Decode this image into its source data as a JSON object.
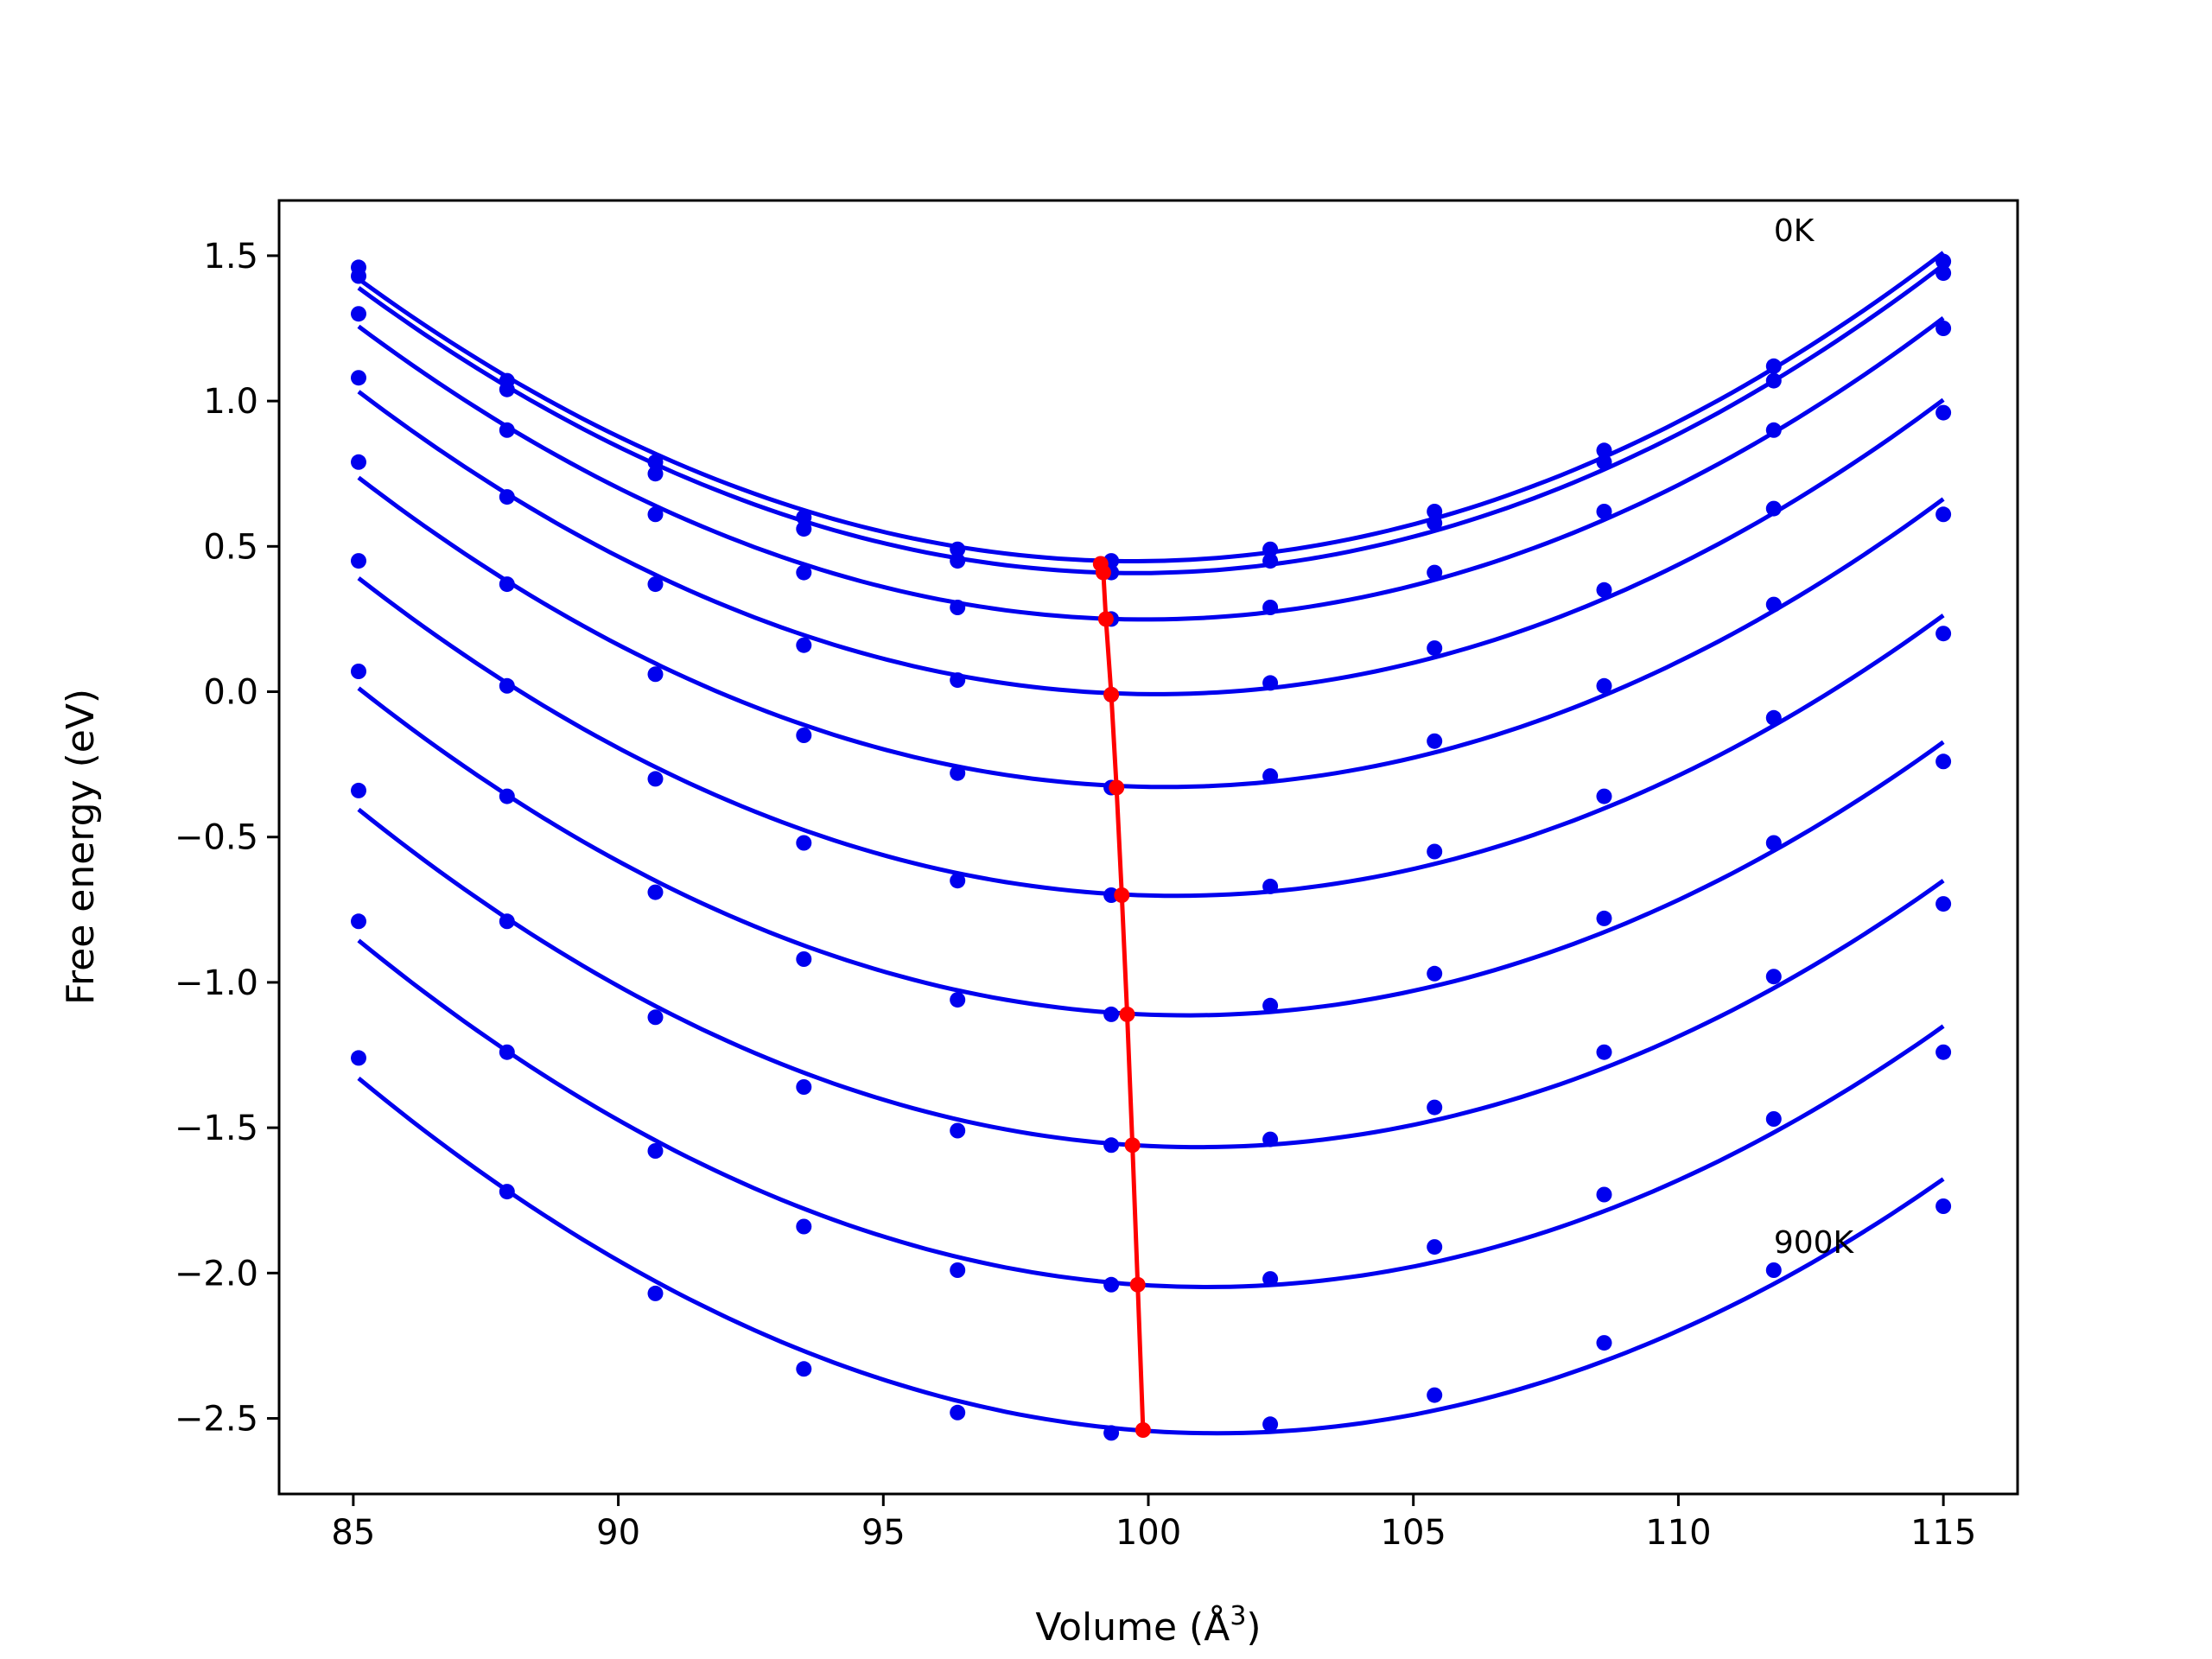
{
  "chart_data": {
    "type": "line",
    "title": "",
    "xlabel": "Volume (Å",
    "xlabel_sup": "3",
    "xlabel_end": ")",
    "ylabel": "Free energy (eV)",
    "xlim": [
      83.6,
      116.4
    ],
    "ylim": [
      -2.76,
      1.69
    ],
    "xticks": [
      85,
      90,
      95,
      100,
      105,
      110,
      115
    ],
    "xtick_labels": [
      "85",
      "90",
      "95",
      "100",
      "105",
      "110",
      "115"
    ],
    "yticks": [
      1.5,
      1.0,
      0.5,
      0.0,
      -0.5,
      -1.0,
      -1.5,
      -2.0,
      -2.5
    ],
    "ytick_labels": [
      "1.5",
      "1.0",
      "0.5",
      "0.0",
      "−0.5",
      "−1.0",
      "−1.5",
      "−2.0",
      "−2.5"
    ],
    "grid": false,
    "annotations": [
      {
        "text": "0K",
        "x": 111.8,
        "y": 1.55
      },
      {
        "text": "900K",
        "x": 111.8,
        "y": -1.93
      }
    ],
    "colors": {
      "curves": "#0000ee",
      "minima": "#ff0000"
    },
    "x": [
      85.1,
      87.9,
      90.7,
      93.5,
      96.4,
      99.3,
      102.3,
      105.4,
      108.6,
      111.8,
      115.0
    ],
    "series": [
      {
        "values": [
          1.46,
          1.07,
          0.79,
          0.6,
          0.49,
          0.45,
          0.49,
          0.62,
          0.83,
          1.12,
          1.48
        ]
      },
      {
        "values": [
          1.43,
          1.04,
          0.75,
          0.56,
          0.45,
          0.41,
          0.45,
          0.58,
          0.79,
          1.07,
          1.44
        ]
      },
      {
        "values": [
          1.3,
          0.9,
          0.61,
          0.41,
          0.29,
          0.25,
          0.29,
          0.41,
          0.62,
          0.9,
          1.25
        ]
      },
      {
        "values": [
          1.08,
          0.67,
          0.37,
          0.16,
          0.04,
          -0.01,
          0.03,
          0.15,
          0.35,
          0.63,
          0.96
        ]
      },
      {
        "values": [
          0.79,
          0.37,
          0.06,
          -0.15,
          -0.28,
          -0.33,
          -0.29,
          -0.17,
          0.02,
          0.3,
          0.61
        ]
      },
      {
        "values": [
          0.45,
          0.02,
          -0.3,
          -0.52,
          -0.65,
          -0.7,
          -0.67,
          -0.55,
          -0.36,
          -0.09,
          0.2
        ]
      },
      {
        "values": [
          0.07,
          -0.36,
          -0.69,
          -0.92,
          -1.06,
          -1.11,
          -1.08,
          -0.97,
          -0.78,
          -0.52,
          -0.24
        ]
      },
      {
        "values": [
          -0.34,
          -0.79,
          -1.12,
          -1.36,
          -1.51,
          -1.56,
          -1.54,
          -1.43,
          -1.24,
          -0.98,
          -0.73
        ]
      },
      {
        "values": [
          -0.79,
          -1.24,
          -1.58,
          -1.84,
          -1.99,
          -2.04,
          -2.02,
          -1.91,
          -1.73,
          -1.47,
          -1.24
        ]
      },
      {
        "values": [
          -1.26,
          -1.72,
          -2.07,
          -2.33,
          -2.48,
          -2.55,
          -2.52,
          -2.42,
          -2.24,
          -1.99,
          -1.77
        ]
      }
    ],
    "minima": {
      "x": [
        99.1,
        99.15,
        99.2,
        99.3,
        99.4,
        99.5,
        99.6,
        99.7,
        99.8,
        99.9
      ],
      "y": [
        0.44,
        0.41,
        0.25,
        -0.01,
        -0.33,
        -0.7,
        -1.11,
        -1.56,
        -2.04,
        -2.54
      ]
    }
  }
}
